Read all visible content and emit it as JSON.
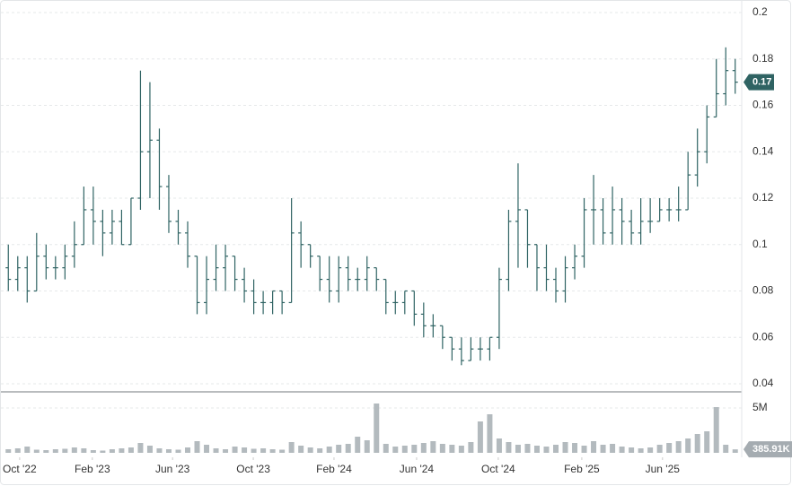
{
  "chart_data": {
    "type": "ohlc",
    "color": "#2f6363",
    "volume_color": "#b3babe",
    "xlim": [
      0,
      156
    ],
    "xticks": [
      {
        "value": 3.4,
        "label": "Oct '22"
      },
      {
        "value": 18.8,
        "label": "Feb '23"
      },
      {
        "value": 35.8,
        "label": "Jun '23"
      },
      {
        "value": 52.9,
        "label": "Oct '23"
      },
      {
        "value": 70,
        "label": "Feb '24"
      },
      {
        "value": 87.5,
        "label": "Jun '24"
      },
      {
        "value": 104.8,
        "label": "Oct '24"
      },
      {
        "value": 122.5,
        "label": "Feb '25"
      },
      {
        "value": 139.6,
        "label": "Jun '25"
      }
    ],
    "ylim": [
      0.04,
      0.2
    ],
    "yticks": [
      0.04,
      0.06,
      0.08,
      0.1,
      0.12,
      0.14,
      0.16,
      0.18,
      0.2
    ],
    "grid": true,
    "volume_ylim": [
      0,
      6800000
    ],
    "volume_ticks": [
      {
        "value": 5000000,
        "label": "5M"
      }
    ],
    "last_volume_label": "385.91K",
    "x": [
      1,
      3,
      5,
      7,
      9,
      11,
      13,
      15,
      17,
      19,
      21,
      23,
      25,
      27,
      29,
      31,
      33,
      35,
      37,
      39,
      41,
      43,
      45,
      47,
      49,
      51,
      53,
      55,
      57,
      59,
      61,
      63,
      65,
      67,
      69,
      71,
      73,
      75,
      77,
      79,
      81,
      83,
      85,
      87,
      89,
      91,
      93,
      95,
      97,
      99,
      101,
      103,
      105,
      107,
      109,
      111,
      113,
      115,
      117,
      119,
      121,
      123,
      125,
      127,
      129,
      131,
      133,
      135,
      137,
      139,
      141,
      143,
      145,
      147,
      149,
      151,
      153,
      155
    ],
    "open": [
      0.09,
      0.085,
      0.09,
      0.08,
      0.095,
      0.09,
      0.09,
      0.095,
      0.1,
      0.115,
      0.11,
      0.105,
      0.11,
      0.1,
      0.12,
      0.14,
      0.145,
      0.125,
      0.11,
      0.105,
      0.095,
      0.075,
      0.085,
      0.09,
      0.095,
      0.085,
      0.08,
      0.075,
      0.075,
      0.08,
      0.075,
      0.105,
      0.1,
      0.095,
      0.085,
      0.08,
      0.09,
      0.085,
      0.085,
      0.09,
      0.085,
      0.075,
      0.075,
      0.08,
      0.07,
      0.065,
      0.065,
      0.06,
      0.055,
      0.05,
      0.055,
      0.055,
      0.06,
      0.085,
      0.11,
      0.115,
      0.1,
      0.09,
      0.085,
      0.08,
      0.09,
      0.095,
      0.115,
      0.115,
      0.105,
      0.115,
      0.11,
      0.105,
      0.11,
      0.11,
      0.115,
      0.115,
      0.115,
      0.13,
      0.14,
      0.155,
      0.165,
      0.175
    ],
    "high": [
      0.1,
      0.095,
      0.095,
      0.105,
      0.1,
      0.095,
      0.1,
      0.11,
      0.125,
      0.125,
      0.115,
      0.115,
      0.115,
      0.12,
      0.175,
      0.17,
      0.15,
      0.13,
      0.115,
      0.11,
      0.095,
      0.095,
      0.1,
      0.1,
      0.095,
      0.09,
      0.085,
      0.08,
      0.08,
      0.08,
      0.12,
      0.11,
      0.1,
      0.095,
      0.095,
      0.095,
      0.095,
      0.09,
      0.095,
      0.09,
      0.085,
      0.08,
      0.08,
      0.08,
      0.075,
      0.07,
      0.065,
      0.06,
      0.06,
      0.06,
      0.06,
      0.06,
      0.09,
      0.115,
      0.135,
      0.115,
      0.1,
      0.1,
      0.09,
      0.095,
      0.1,
      0.12,
      0.13,
      0.12,
      0.125,
      0.12,
      0.115,
      0.12,
      0.12,
      0.12,
      0.12,
      0.125,
      0.14,
      0.15,
      0.16,
      0.18,
      0.185,
      0.18
    ],
    "low": [
      0.08,
      0.08,
      0.075,
      0.08,
      0.085,
      0.085,
      0.085,
      0.09,
      0.1,
      0.1,
      0.095,
      0.1,
      0.1,
      0.1,
      0.115,
      0.12,
      0.115,
      0.105,
      0.1,
      0.09,
      0.07,
      0.07,
      0.08,
      0.08,
      0.08,
      0.075,
      0.07,
      0.07,
      0.07,
      0.07,
      0.075,
      0.09,
      0.09,
      0.08,
      0.075,
      0.075,
      0.08,
      0.08,
      0.08,
      0.08,
      0.07,
      0.07,
      0.07,
      0.065,
      0.06,
      0.06,
      0.055,
      0.05,
      0.048,
      0.05,
      0.05,
      0.05,
      0.055,
      0.08,
      0.09,
      0.09,
      0.08,
      0.08,
      0.075,
      0.075,
      0.085,
      0.09,
      0.1,
      0.1,
      0.1,
      0.1,
      0.1,
      0.1,
      0.105,
      0.11,
      0.11,
      0.11,
      0.115,
      0.125,
      0.135,
      0.155,
      0.16,
      0.165
    ],
    "close": [
      0.085,
      0.09,
      0.08,
      0.095,
      0.09,
      0.09,
      0.095,
      0.1,
      0.115,
      0.11,
      0.105,
      0.11,
      0.1,
      0.12,
      0.14,
      0.145,
      0.125,
      0.11,
      0.105,
      0.095,
      0.075,
      0.085,
      0.09,
      0.095,
      0.085,
      0.08,
      0.075,
      0.075,
      0.08,
      0.075,
      0.105,
      0.1,
      0.095,
      0.085,
      0.08,
      0.09,
      0.085,
      0.085,
      0.09,
      0.085,
      0.075,
      0.075,
      0.08,
      0.07,
      0.065,
      0.065,
      0.06,
      0.055,
      0.05,
      0.055,
      0.055,
      0.06,
      0.085,
      0.11,
      0.115,
      0.1,
      0.09,
      0.085,
      0.08,
      0.09,
      0.095,
      0.115,
      0.115,
      0.105,
      0.115,
      0.11,
      0.105,
      0.11,
      0.11,
      0.115,
      0.115,
      0.115,
      0.13,
      0.14,
      0.155,
      0.165,
      0.175,
      0.17
    ],
    "volume": [
      400000,
      500000,
      700000,
      350000,
      300000,
      400000,
      450000,
      600000,
      500000,
      300000,
      250000,
      400000,
      500000,
      600000,
      1100000,
      800000,
      500000,
      400000,
      350000,
      600000,
      1300000,
      900000,
      500000,
      400000,
      700000,
      600000,
      450000,
      500000,
      400000,
      350000,
      1200000,
      800000,
      600000,
      500000,
      700000,
      900000,
      1000000,
      1800000,
      1400000,
      5500000,
      1000000,
      700000,
      800000,
      900000,
      1100000,
      1300000,
      1000000,
      900000,
      800000,
      1200000,
      3500000,
      4300000,
      1600000,
      1200000,
      900000,
      1000000,
      800000,
      700000,
      900000,
      1200000,
      1100000,
      800000,
      1300000,
      900000,
      1000000,
      700000,
      600000,
      500000,
      600000,
      900000,
      1100000,
      1300000,
      1600000,
      2100000,
      2400000,
      5100000,
      900000,
      385910
    ]
  }
}
